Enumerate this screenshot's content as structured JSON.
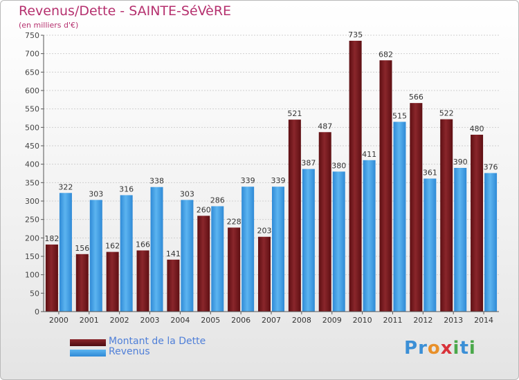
{
  "header": {
    "title": "Revenus/Dette - SAINTE-SéVèRE",
    "subtitle": "(en milliers d'€)"
  },
  "legend": [
    {
      "label": "Montant de la Dette",
      "color": "#7a1a1f"
    },
    {
      "label": "Revenus",
      "color": "#4aa3e6"
    }
  ],
  "logo": {
    "text": "Proxiti",
    "letters": [
      {
        "ch": "P",
        "color": "#3b8fd6"
      },
      {
        "ch": "r",
        "color": "#3b8fd6"
      },
      {
        "ch": "o",
        "color": "#e8902a"
      },
      {
        "ch": "x",
        "color": "#d8323a"
      },
      {
        "ch": "i",
        "color": "#4aa84a"
      },
      {
        "ch": "t",
        "color": "#3b8fd6"
      },
      {
        "ch": "i",
        "color": "#4aa84a"
      }
    ]
  },
  "chart_data": {
    "type": "bar",
    "title": "Revenus/Dette - SAINTE-SéVèRE",
    "subtitle": "(en milliers d'€)",
    "categories": [
      "2000",
      "2001",
      "2002",
      "2003",
      "2004",
      "2005",
      "2006",
      "2007",
      "2008",
      "2009",
      "2010",
      "2011",
      "2012",
      "2013",
      "2014"
    ],
    "series": [
      {
        "name": "Montant de la Dette",
        "color": "#7a1a1f",
        "values": [
          182,
          156,
          162,
          166,
          141,
          260,
          228,
          203,
          521,
          487,
          735,
          682,
          566,
          522,
          480
        ]
      },
      {
        "name": "Revenus",
        "color": "#4aa3e6",
        "values": [
          322,
          303,
          316,
          338,
          303,
          286,
          339,
          339,
          387,
          380,
          411,
          515,
          361,
          390,
          376
        ]
      }
    ],
    "ylim": [
      0,
      750
    ],
    "yticks": [
      0,
      50,
      100,
      150,
      200,
      250,
      300,
      350,
      400,
      450,
      500,
      550,
      600,
      650,
      700,
      750
    ],
    "grid": true,
    "legend_position": "bottom-left"
  }
}
